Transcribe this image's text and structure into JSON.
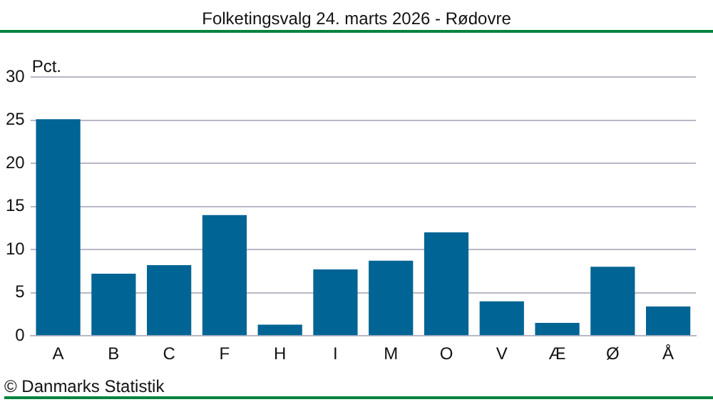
{
  "chart_data": {
    "type": "bar",
    "title": "Folketingsvalg 24. marts 2026 - Rødovre",
    "ylabel": "Pct.",
    "categories": [
      "A",
      "B",
      "C",
      "F",
      "H",
      "I",
      "M",
      "O",
      "V",
      "Æ",
      "Ø",
      "Å"
    ],
    "values": [
      25.1,
      7.2,
      8.2,
      14.0,
      1.3,
      7.7,
      8.7,
      12.0,
      4.0,
      1.5,
      8.0,
      3.4
    ],
    "color": "#006495",
    "ylim": [
      0,
      30
    ],
    "yticks": [
      0,
      5,
      10,
      15,
      20,
      25,
      30
    ],
    "grid": "y",
    "legend": false,
    "annotations": [
      "© Danmarks Statistik"
    ]
  }
}
